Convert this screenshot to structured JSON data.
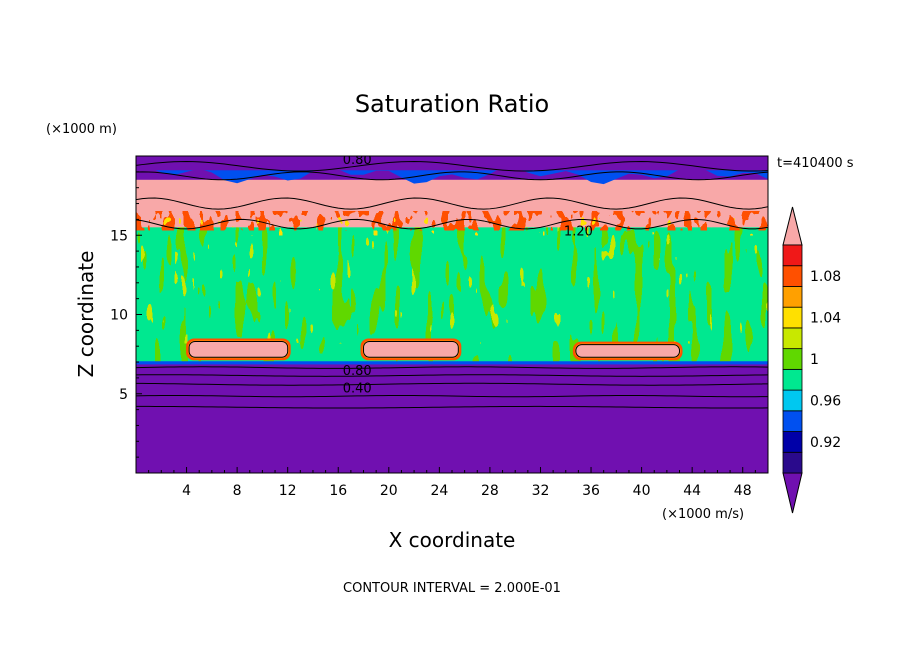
{
  "chart_data": {
    "type": "heatmap",
    "title": "Saturation Ratio",
    "xlabel": "X coordinate",
    "ylabel": "Z coordinate",
    "x_unit": "(×1000 m/s)",
    "y_unit": "(×1000 m)",
    "time_label": "t=410400 s",
    "footer": "CONTOUR INTERVAL = 2.000E-01",
    "xlim": [
      0,
      50
    ],
    "ylim": [
      0,
      20
    ],
    "x_ticks": [
      "4",
      "8",
      "12",
      "16",
      "20",
      "24",
      "28",
      "32",
      "36",
      "40",
      "44",
      "48"
    ],
    "y_ticks": [
      "5",
      "10",
      "15"
    ],
    "x_tick_values": [
      4,
      8,
      12,
      16,
      20,
      24,
      28,
      32,
      36,
      40,
      44,
      48
    ],
    "y_tick_values": [
      5,
      10,
      15
    ],
    "colorbar": {
      "labels": [
        "0.92",
        "0.96",
        "1",
        "1.04",
        "1.08"
      ],
      "label_values": [
        0.92,
        0.96,
        1.0,
        1.04,
        1.08
      ],
      "levels": [
        0.9,
        0.92,
        0.94,
        0.96,
        0.98,
        1.0,
        1.02,
        1.04,
        1.06,
        1.08,
        1.1
      ],
      "colors": [
        "#2a0a8c",
        "#0000a8",
        "#0050f0",
        "#00c8f0",
        "#00e890",
        "#60d800",
        "#c8e800",
        "#ffe000",
        "#ffa000",
        "#ff5000",
        "#f01818"
      ],
      "under_color": "#7010b0",
      "over_color": "#f8a8a8"
    },
    "contour_labels": [
      {
        "text": "0.80",
        "x": 17.5,
        "z": 19.8
      },
      {
        "text": "1.20",
        "x": 35.0,
        "z": 15.3
      },
      {
        "text": "0.80",
        "x": 17.5,
        "z": 6.5
      },
      {
        "text": "0.40",
        "x": 17.5,
        "z": 5.4
      }
    ],
    "regions": {
      "lower_dry_top_z": 7.0,
      "cloud_layer_z": [
        7.0,
        15.5
      ],
      "supersat_layer_z": [
        15.5,
        18.5
      ],
      "top_dry_z": [
        18.5,
        20.0
      ],
      "lens_cells": [
        {
          "x": [
            4.2,
            12.0
          ],
          "z": [
            7.3,
            8.3
          ]
        },
        {
          "x": [
            18.0,
            25.5
          ],
          "z": [
            7.3,
            8.3
          ]
        },
        {
          "x": [
            34.8,
            43.0
          ],
          "z": [
            7.3,
            8.1
          ]
        }
      ]
    }
  }
}
